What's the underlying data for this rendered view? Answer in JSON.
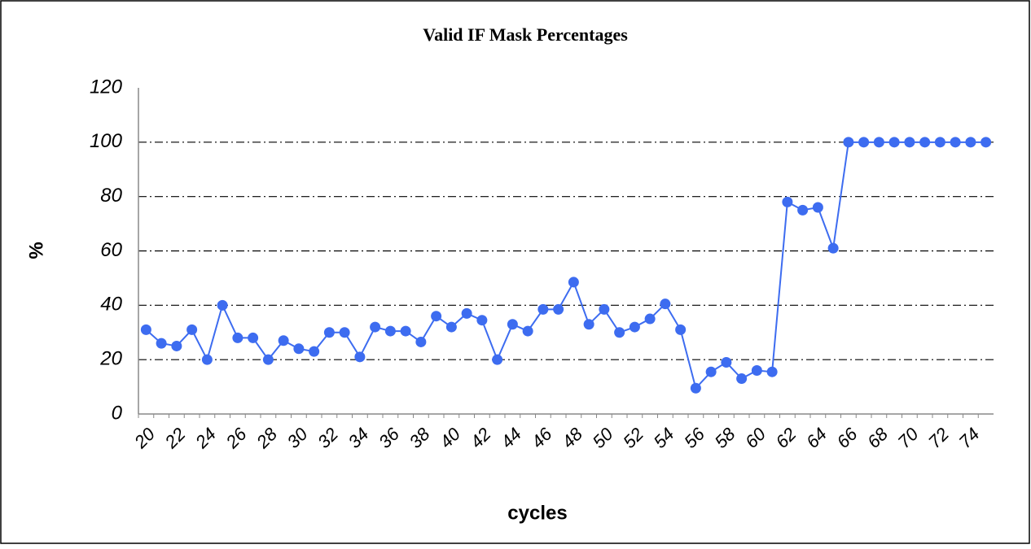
{
  "chart_data": {
    "type": "line",
    "title": "Valid IF Mask Percentages",
    "x_label": "cycles",
    "y_label": "%",
    "categories": [
      "20",
      null,
      "22",
      null,
      "24",
      null,
      "26",
      null,
      "28",
      null,
      "30",
      null,
      "32",
      null,
      "34",
      null,
      "36",
      null,
      "38",
      null,
      "40",
      null,
      "42",
      null,
      "44",
      null,
      "46",
      null,
      "48",
      null,
      "50",
      null,
      "52",
      null,
      "54",
      null,
      "56",
      null,
      "58",
      null,
      "60",
      null,
      "62",
      null,
      "64",
      null,
      "66",
      null,
      "68",
      null,
      "70",
      null,
      "72",
      null,
      "74",
      null
    ],
    "series": [
      {
        "name": "Valid IF Mask",
        "color": "#3d6cf0",
        "values": [
          31,
          26,
          25,
          31,
          20,
          40,
          28,
          28,
          20,
          27,
          24,
          23,
          30,
          30,
          21,
          32,
          30.5,
          30.5,
          26.5,
          36,
          32,
          37,
          34.5,
          20,
          33,
          30.5,
          38.5,
          38.5,
          48.5,
          33,
          38.5,
          30,
          32,
          35,
          40.5,
          31,
          9.5,
          15.5,
          19,
          13,
          16,
          15.5,
          78,
          75,
          76,
          61,
          100,
          100,
          100,
          100,
          100,
          100,
          100,
          100,
          100,
          100
        ]
      }
    ],
    "ylim": [
      0,
      120
    ],
    "yticks": [
      0,
      20,
      40,
      60,
      80,
      100,
      120
    ],
    "grid": true
  }
}
